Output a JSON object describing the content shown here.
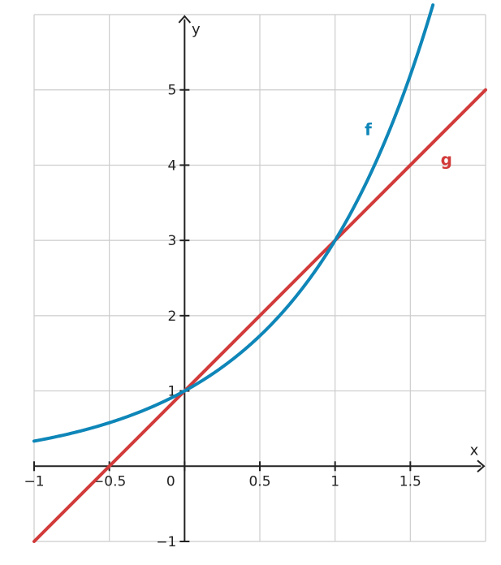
{
  "chart_data": {
    "type": "line",
    "title": "",
    "xlabel": "x",
    "ylabel": "y",
    "xlim": [
      -1,
      2
    ],
    "ylim": [
      -1,
      6
    ],
    "grid": true,
    "x_ticks": [
      -1,
      -0.5,
      0,
      0.5,
      1,
      1.5
    ],
    "x_tick_labels": [
      "−1",
      "−0.5",
      "0",
      "0.5",
      "1",
      "1.5"
    ],
    "y_ticks": [
      -1,
      1,
      2,
      3,
      4,
      5
    ],
    "y_tick_labels": [
      "−1",
      "1",
      "2",
      "3",
      "4",
      "5"
    ],
    "series": [
      {
        "name": "f",
        "color": "#0e86b8",
        "x": [
          -1,
          -0.75,
          -0.5,
          -0.25,
          0,
          0.25,
          0.5,
          0.75,
          1,
          1.25,
          1.5,
          1.65
        ],
        "y": [
          0.333,
          0.439,
          0.577,
          0.76,
          1.0,
          1.316,
          1.732,
          2.28,
          3.0,
          3.948,
          5.196,
          6.12
        ]
      },
      {
        "name": "g",
        "color": "#d23a3a",
        "x": [
          -1,
          2
        ],
        "y": [
          -1,
          5
        ]
      }
    ]
  }
}
